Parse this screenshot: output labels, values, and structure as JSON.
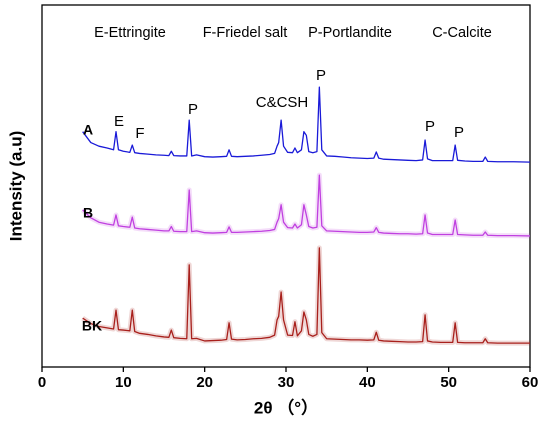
{
  "chart_data": {
    "type": "line",
    "labels": [
      "E-Ettringite",
      "F-Friedel salt",
      "P-Portlandite",
      "C-Calcite"
    ],
    "annotations": [
      "E",
      "F",
      "P",
      "C&CSH",
      "P",
      "P",
      "P"
    ],
    "xlabel": "2θ （°）",
    "ylabel": "Intensity (a.u)",
    "xlim": [
      0,
      60
    ],
    "xticks": [
      0,
      10,
      20,
      30,
      40,
      50,
      60
    ],
    "ylim": [
      0,
      100
    ],
    "x": [
      5,
      6,
      7,
      8,
      8.8,
      9.1,
      9.4,
      10,
      10.8,
      11.1,
      11.4,
      12,
      13,
      14,
      15,
      15.6,
      15.9,
      16.2,
      17,
      17.8,
      18.1,
      18.4,
      19,
      20,
      21,
      22,
      22.7,
      23,
      23.3,
      24,
      25,
      26,
      27,
      28,
      28.6,
      28.9,
      29.1,
      29.4,
      29.7,
      30.2,
      30.8,
      31.1,
      31.4,
      31.9,
      32.2,
      32.5,
      32.8,
      33.3,
      33.8,
      34.1,
      34.4,
      35,
      36,
      37,
      38,
      39,
      40,
      40.8,
      41.1,
      41.4,
      42,
      43,
      44,
      45,
      46,
      46.8,
      47.1,
      47.4,
      48,
      49,
      50.5,
      50.8,
      51.1,
      52,
      53,
      54.2,
      54.5,
      54.8,
      56,
      58,
      60
    ],
    "series": [
      {
        "name": "A",
        "color": "#1a1ad8",
        "values": [
          65,
          62,
          61,
          60.5,
          60,
          65,
          60,
          59.6,
          59.3,
          61.3,
          59.2,
          59,
          58.8,
          58.6,
          58.5,
          58.4,
          59.6,
          58.4,
          58.3,
          58.3,
          68.2,
          58.3,
          58.6,
          58.1,
          58,
          58.1,
          58.2,
          60,
          58.2,
          58.1,
          58.2,
          58.3,
          58.5,
          58.7,
          59,
          61,
          62,
          68.2,
          61,
          59.3,
          59.2,
          60.5,
          59.2,
          60,
          65,
          64,
          59.5,
          59.2,
          59.5,
          77.3,
          60,
          58.3,
          58.2,
          58,
          57.8,
          57.7,
          57.6,
          57.7,
          59.4,
          57.7,
          57.4,
          57.3,
          57.2,
          57.1,
          57,
          57.2,
          62.7,
          57.5,
          57,
          57,
          57,
          61.3,
          57.1,
          56.9,
          56.8,
          56.8,
          58,
          56.8,
          56.7,
          56.7,
          56.6
        ]
      },
      {
        "name": "B",
        "color": "#c040e0",
        "values": [
          43.4,
          41.2,
          40,
          39.5,
          39.2,
          42,
          39,
          38.8,
          38.6,
          41.4,
          38.4,
          38.2,
          38,
          37.8,
          37.6,
          37.6,
          38.8,
          37.5,
          37.4,
          37.4,
          48.9,
          37.4,
          37.6,
          37.1,
          37,
          37.1,
          37.2,
          38.7,
          37.2,
          37.2,
          37.3,
          37.4,
          37.5,
          37.7,
          38,
          40,
          41,
          44.8,
          40,
          38.5,
          38.4,
          39.5,
          38.4,
          39.3,
          44.8,
          42,
          38.8,
          38.4,
          38.6,
          53,
          39,
          37.6,
          37.5,
          37.4,
          37.3,
          37.2,
          37.2,
          37.3,
          38.5,
          37.2,
          37,
          36.9,
          36.8,
          36.8,
          36.7,
          36.8,
          42,
          37,
          36.6,
          36.6,
          36.6,
          40.6,
          36.6,
          36.5,
          36.4,
          36.4,
          37.3,
          36.4,
          36.3,
          36.3,
          36.2
        ]
      },
      {
        "name": "BK",
        "color": "#a8201c",
        "values": [
          13.5,
          12,
          11.2,
          10.8,
          10.5,
          15.7,
          10.3,
          10.2,
          10,
          15.7,
          9.8,
          9.3,
          9,
          8.6,
          8.3,
          8.2,
          10.2,
          8.1,
          7.9,
          7.8,
          28.2,
          7.8,
          7.9,
          7.2,
          7.3,
          7.4,
          7.6,
          12.2,
          7.7,
          7.5,
          7.6,
          7.8,
          7.9,
          8.2,
          8.8,
          13,
          14,
          20.7,
          13,
          8.8,
          8.7,
          12.5,
          8.6,
          10,
          15.2,
          13,
          9,
          8.5,
          9,
          32.9,
          9.5,
          7.8,
          7.7,
          7.6,
          7.5,
          7.5,
          7.4,
          7.5,
          9.6,
          7.4,
          7.2,
          7.1,
          7,
          6.9,
          6.9,
          7,
          14.4,
          7.2,
          6.9,
          6.8,
          6.8,
          12.2,
          6.8,
          6.7,
          6.7,
          6.7,
          7.8,
          6.7,
          6.6,
          6.6,
          6.6
        ]
      }
    ]
  }
}
